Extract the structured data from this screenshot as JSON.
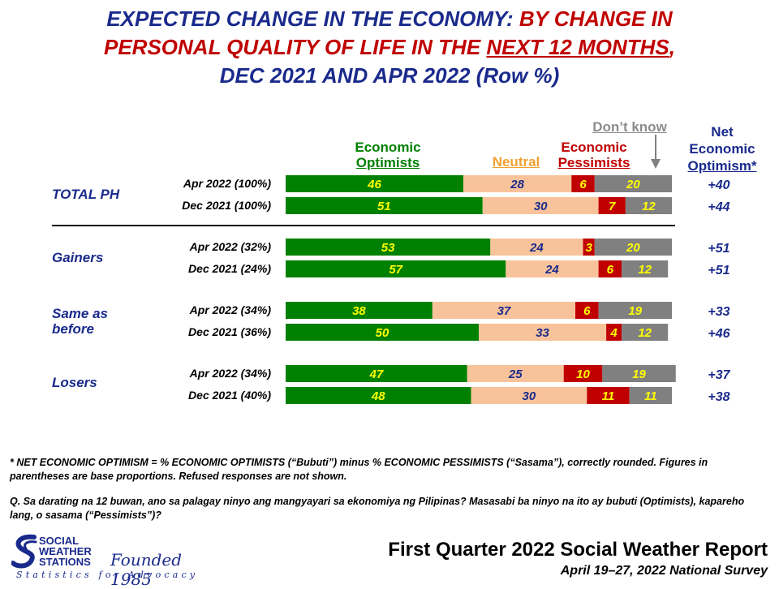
{
  "title": {
    "part1": "EXPECTED CHANGE IN THE ECONOMY:",
    "part2": "BY CHANGE IN",
    "part3": "PERSONAL QUALITY OF LIFE IN THE",
    "part4": "NEXT 12 MONTHS",
    "part5": ",",
    "part6": "DEC 2021 AND APR 2022 (Row %)"
  },
  "headers": {
    "optimists_1": "Economic",
    "optimists_2": "Optimists",
    "neutral": "Neutral",
    "pessimists_1": "Economic",
    "pessimists_2": "Pessimists",
    "dont_know": "Don’t know",
    "net_1": "Net",
    "net_2": "Economic",
    "net_3": "Optimism*"
  },
  "groups": {
    "total": "TOTAL PH",
    "gainers": "Gainers",
    "same_1": "Same as",
    "same_2": "before",
    "losers": "Losers"
  },
  "row_labels": [
    "Apr 2022 (100%)",
    "Dec 2021 (100%)",
    "Apr 2022 (32%)",
    "Dec 2021 (24%)",
    "Apr 2022 (34%)",
    "Dec 2021 (36%)",
    "Apr 2022 (34%)",
    "Dec 2021 (40%)"
  ],
  "net_values": [
    "+40",
    "+44",
    "+51",
    "+51",
    "+33",
    "+46",
    "+37",
    "+38"
  ],
  "colors": {
    "optimists": "#008000",
    "neutral": "#f8c39b",
    "pessimists": "#c00000",
    "dont_know": "#808080",
    "label_light": "#ffff00",
    "label_neutral": "#1a2a8c"
  },
  "chart_data": {
    "type": "bar",
    "orientation": "horizontal",
    "stacked": true,
    "title": "EXPECTED CHANGE IN THE ECONOMY: BY CHANGE IN PERSONAL QUALITY OF LIFE IN THE NEXT 12 MONTHS, DEC 2021 AND APR 2022 (Row %)",
    "categories": [
      "TOTAL PH Apr 2022 (100%)",
      "TOTAL PH Dec 2021 (100%)",
      "Gainers Apr 2022 (32%)",
      "Gainers Dec 2021 (24%)",
      "Same as before Apr 2022 (34%)",
      "Same as before Dec 2021 (36%)",
      "Losers Apr 2022 (34%)",
      "Losers Dec 2021 (40%)"
    ],
    "series": [
      {
        "name": "Economic Optimists",
        "values": [
          46,
          51,
          53,
          57,
          38,
          50,
          47,
          48
        ]
      },
      {
        "name": "Neutral",
        "values": [
          28,
          30,
          24,
          24,
          37,
          33,
          25,
          30
        ]
      },
      {
        "name": "Economic Pessimists",
        "values": [
          6,
          7,
          3,
          6,
          6,
          4,
          10,
          11
        ]
      },
      {
        "name": "Don’t know",
        "values": [
          20,
          12,
          20,
          12,
          19,
          12,
          19,
          11
        ]
      }
    ],
    "net_economic_optimism": [
      40,
      44,
      51,
      51,
      33,
      46,
      37,
      38
    ],
    "xlim": [
      0,
      100
    ]
  },
  "notes": {
    "note1": "* NET ECONOMIC OPTIMISM =  % ECONOMIC OPTIMISTS (“Bubuti”) minus % ECONOMIC PESSIMISTS (“Sasama”), correctly rounded. Figures in parentheses are base proportions.  Refused responses are not shown.",
    "note2": "Q. Sa darating na 12 buwan, ano sa palagay ninyo ang mangyayari sa ekonomiya ng Pilipinas? Masasabi ba ninyo na ito ay bubuti (Optimists),  kapareho lang, o sasama (“Pessimists”)?"
  },
  "logo": {
    "line1": "SOCIAL",
    "line2": "WEATHER",
    "line3": "STATIONS",
    "founded": "Founded 1985",
    "tagline": "Statistics for Advocacy"
  },
  "footer": {
    "title": "First Quarter 2022 Social Weather Report",
    "subtitle": "April 19–27, 2022 National Survey"
  }
}
